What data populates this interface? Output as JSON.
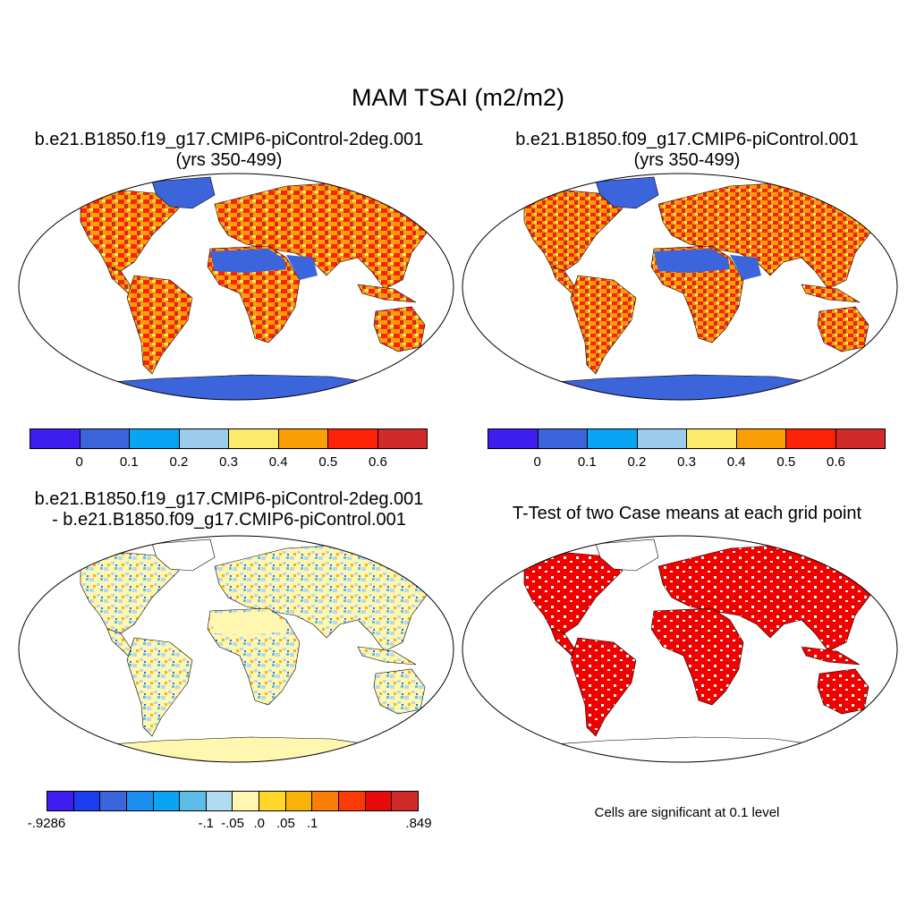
{
  "title": "MAM TSAI (m2/m2)",
  "panels": [
    {
      "title_line1": "b.e21.B1850.f19_g17.CMIP6-piControl-2deg.001",
      "title_line2": "(yrs 350-499)"
    },
    {
      "title_line1": "b.e21.B1850.f09_g17.CMIP6-piControl.001",
      "title_line2": "(yrs 350-499)"
    },
    {
      "title_line1": "b.e21.B1850.f19_g17.CMIP6-piControl-2deg.001",
      "title_line2": "- b.e21.B1850.f09_g17.CMIP6-piControl.001"
    },
    {
      "title_line1": "T-Test of two Case means at each grid point"
    }
  ],
  "colorbar_case": {
    "colors": [
      "#3d1df0",
      "#3c64db",
      "#0aa5f2",
      "#9ccbeb",
      "#fbea6e",
      "#fb9e06",
      "#fb2207",
      "#d12a2a"
    ],
    "labels": [
      "0",
      "0.1",
      "0.2",
      "0.3",
      "0.4",
      "0.5",
      "0.6"
    ]
  },
  "colorbar_diff": {
    "colors": [
      "#3d1df0",
      "#1d3df0",
      "#3c64db",
      "#1c8ff0",
      "#0aa5f2",
      "#5ebde8",
      "#b1dbf0",
      "#fff6b0",
      "#ffd72a",
      "#fbb30a",
      "#fb7d05",
      "#fb3a06",
      "#e60a0a",
      "#d12a2a"
    ],
    "labels": [
      "-.9286",
      "-.1",
      "-.05",
      ".0",
      ".05",
      ".1",
      ".849"
    ]
  },
  "significance_note": "Cells are significant at 0.1 level",
  "map_colors": {
    "antarctica_case": "#3c64db",
    "desert_case": "#3c64db",
    "ocean": "#ffffff",
    "diff_base": "#fff6b0",
    "diff_blue": "#b1dbf0",
    "sig_red": "#f20000"
  }
}
